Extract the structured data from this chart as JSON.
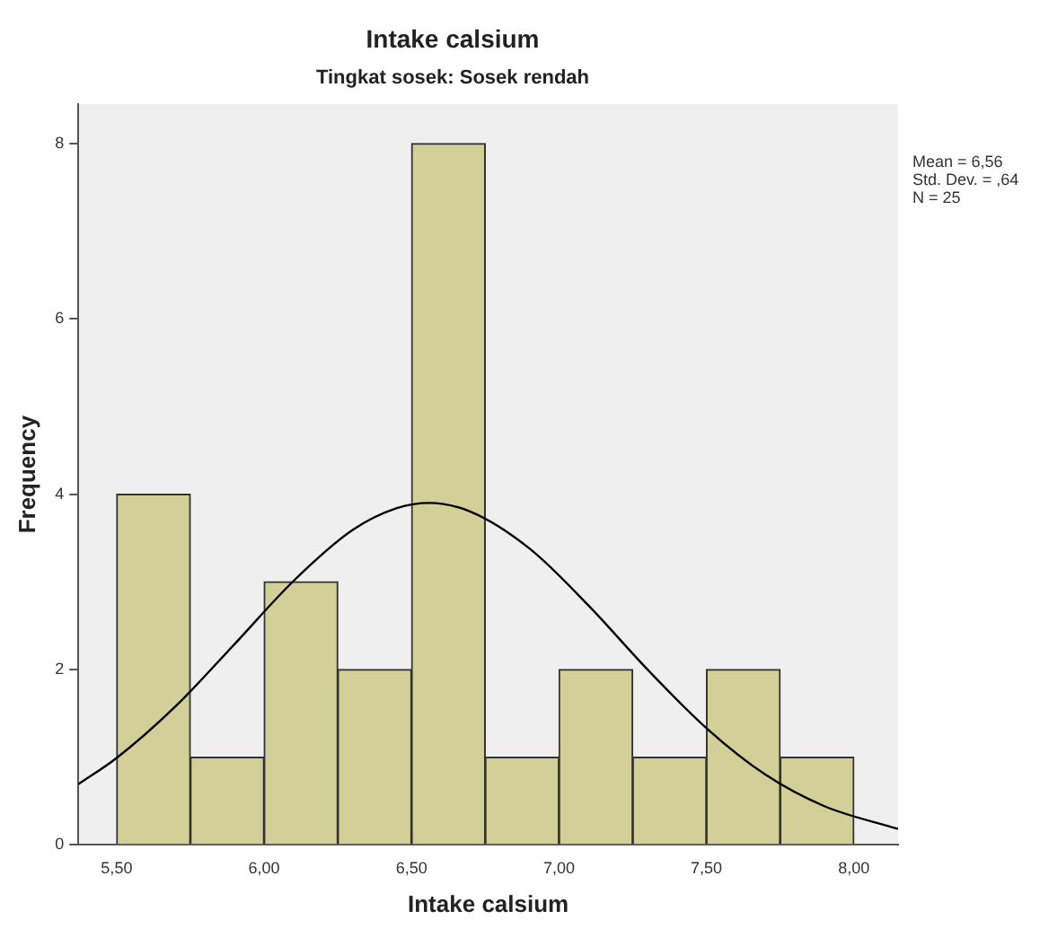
{
  "chart_data": {
    "type": "histogram",
    "title": "Intake calsium",
    "subtitle": "Tingkat sosek: Sosek rendah",
    "xlabel": "Intake calsium",
    "ylabel": "Frequency",
    "bins": [
      5.5,
      5.75,
      6.0,
      6.25,
      6.5,
      6.75,
      7.0,
      7.25,
      7.5,
      7.75,
      8.0
    ],
    "values": [
      4,
      1,
      3,
      2,
      8,
      1,
      2,
      1,
      2,
      1
    ],
    "color": "#d3cf98",
    "series": [
      {
        "type": "line",
        "color": "#000000",
        "x": [
          5.37,
          5.5,
          5.7,
          5.9,
          6.1,
          6.3,
          6.45,
          6.56,
          6.7,
          6.9,
          7.1,
          7.3,
          7.5,
          7.7,
          7.9,
          8.15
        ],
        "values": [
          0.69,
          0.99,
          1.58,
          2.29,
          3.01,
          3.59,
          3.84,
          3.9,
          3.8,
          3.38,
          2.73,
          2.0,
          1.33,
          0.8,
          0.44,
          0.18
        ]
      }
    ],
    "xlim": [
      5.37,
      8.15
    ],
    "ylim": [
      0,
      8.45
    ],
    "xticks": [
      {
        "value": 5.5,
        "label": "5,50"
      },
      {
        "value": 6.0,
        "label": "6,00"
      },
      {
        "value": 6.5,
        "label": "6,50"
      },
      {
        "value": 7.0,
        "label": "7,00"
      },
      {
        "value": 7.5,
        "label": "7,50"
      },
      {
        "value": 8.0,
        "label": "8,00"
      }
    ],
    "yticks": [
      0,
      2,
      4,
      6,
      8
    ],
    "annotations": [
      "Mean = 6,56",
      "Std. Dev. = ,64",
      "N = 25"
    ],
    "grid": false,
    "legend": false,
    "marker": "none"
  }
}
